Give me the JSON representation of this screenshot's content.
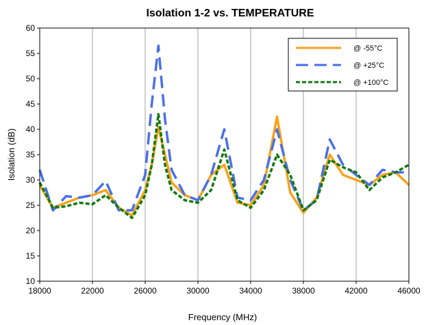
{
  "chart_data": {
    "type": "line",
    "title": "Isolation 1-2 vs. TEMPERATURE",
    "xlabel": "Frequency (MHz)",
    "ylabel": "Isolation (dB)",
    "xlim": [
      18000,
      46000
    ],
    "ylim": [
      10,
      60
    ],
    "x_ticks": [
      18000,
      22000,
      26000,
      30000,
      34000,
      38000,
      42000,
      46000
    ],
    "y_ticks": [
      10,
      15,
      20,
      25,
      30,
      35,
      40,
      45,
      50,
      55,
      60
    ],
    "grid": "vertical",
    "legend_position": "top-right",
    "series": [
      {
        "name": "@ -55°C",
        "color": "#F7A21B",
        "dash": "solid",
        "x": [
          18000,
          19000,
          20000,
          21000,
          22000,
          23000,
          24000,
          25000,
          26000,
          26500,
          27000,
          27500,
          28000,
          29000,
          30000,
          31000,
          32000,
          33000,
          34000,
          35000,
          36000,
          37000,
          38000,
          39000,
          40000,
          41000,
          42000,
          43000,
          44000,
          45000,
          46000
        ],
        "y": [
          29.0,
          24.5,
          25.5,
          26.5,
          27.0,
          28.0,
          24.5,
          23.0,
          28.0,
          33.0,
          40.5,
          35.0,
          29.5,
          27.0,
          26.0,
          31.0,
          33.0,
          25.5,
          25.0,
          29.0,
          42.5,
          27.5,
          23.5,
          26.5,
          35.0,
          31.0,
          30.0,
          29.0,
          31.0,
          31.5,
          29.0
        ]
      },
      {
        "name": "@ +25°C",
        "color": "#4A6FE8",
        "dash": "long",
        "x": [
          18000,
          19000,
          20000,
          21000,
          22000,
          23000,
          24000,
          25000,
          26000,
          26500,
          27000,
          27500,
          28000,
          29000,
          30000,
          31000,
          32000,
          33000,
          34000,
          35000,
          36000,
          37000,
          38000,
          39000,
          40000,
          41000,
          42000,
          43000,
          44000,
          45000,
          46000
        ],
        "y": [
          32.0,
          24.0,
          26.8,
          26.5,
          27.0,
          29.8,
          24.0,
          24.0,
          31.0,
          45.0,
          56.5,
          42.0,
          32.0,
          27.0,
          26.0,
          31.0,
          40.0,
          26.5,
          26.0,
          30.0,
          40.0,
          30.0,
          24.0,
          26.0,
          38.0,
          33.0,
          31.0,
          29.0,
          32.0,
          31.5,
          31.5
        ]
      },
      {
        "name": "@ +100°C",
        "color": "#117A11",
        "dash": "short",
        "x": [
          18000,
          19000,
          20000,
          21000,
          22000,
          23000,
          24000,
          25000,
          26000,
          26500,
          27000,
          27500,
          28000,
          29000,
          30000,
          31000,
          32000,
          33000,
          34000,
          35000,
          36000,
          37000,
          38000,
          39000,
          40000,
          41000,
          42000,
          43000,
          44000,
          45000,
          46000
        ],
        "y": [
          29.5,
          24.5,
          24.8,
          25.5,
          25.2,
          27.0,
          24.5,
          22.5,
          27.0,
          33.0,
          43.0,
          33.0,
          28.0,
          26.0,
          25.5,
          28.0,
          36.0,
          26.0,
          24.5,
          28.0,
          35.0,
          31.0,
          24.0,
          26.0,
          34.0,
          32.5,
          31.5,
          28.0,
          30.5,
          31.5,
          33.0
        ]
      }
    ]
  }
}
